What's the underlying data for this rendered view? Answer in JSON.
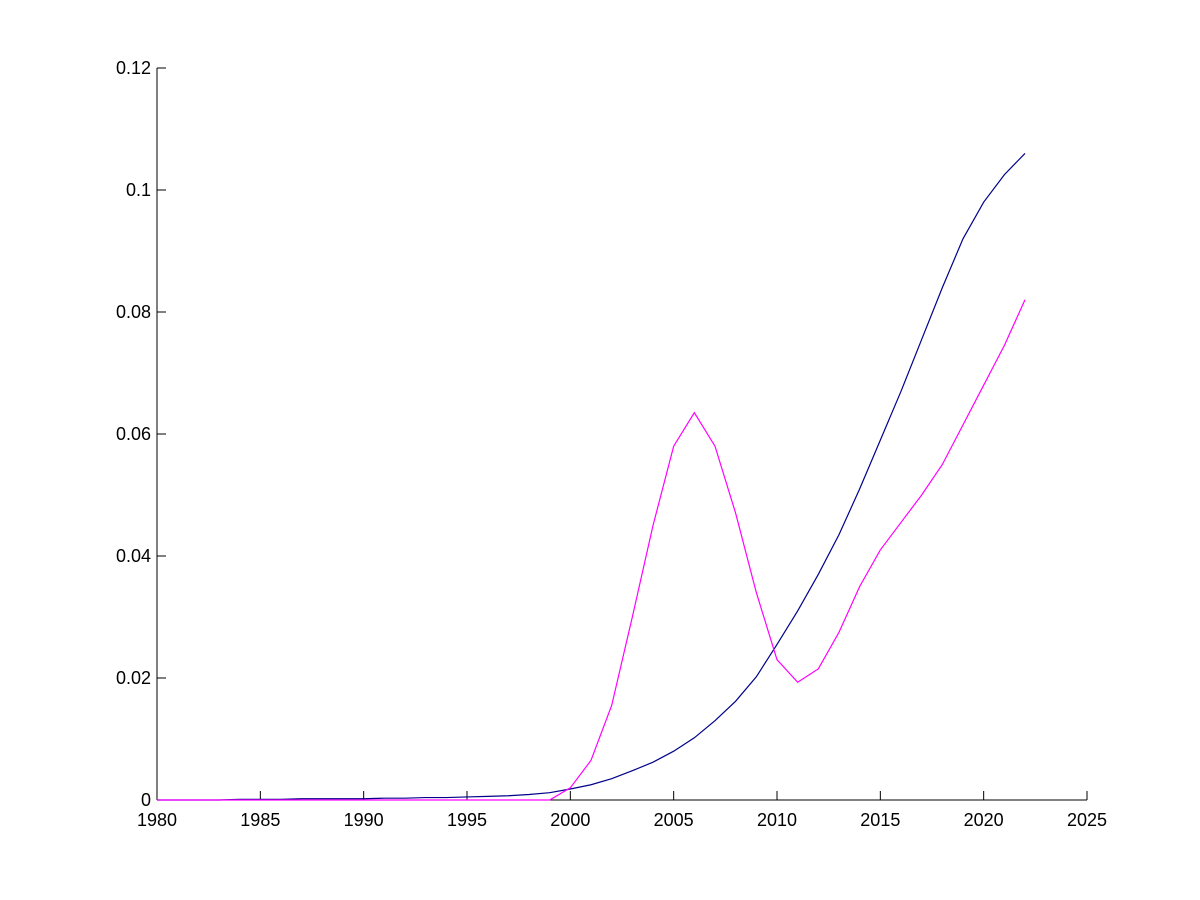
{
  "chart_data": {
    "type": "line",
    "x": [
      1980,
      1981,
      1982,
      1983,
      1984,
      1985,
      1986,
      1987,
      1988,
      1989,
      1990,
      1991,
      1992,
      1993,
      1994,
      1995,
      1996,
      1997,
      1998,
      1999,
      2000,
      2001,
      2002,
      2003,
      2004,
      2005,
      2006,
      2007,
      2008,
      2009,
      2010,
      2011,
      2012,
      2013,
      2014,
      2015,
      2016,
      2017,
      2018,
      2019,
      2020,
      2021,
      2022
    ],
    "series": [
      {
        "color": "#00008b",
        "values": [
          0,
          0,
          0,
          0,
          0.0001,
          0.0001,
          0.0001,
          0.0002,
          0.0002,
          0.0002,
          0.0002,
          0.0003,
          0.0003,
          0.0004,
          0.0004,
          0.0005,
          0.0006,
          0.0007,
          0.0009,
          0.0012,
          0.0018,
          0.0025,
          0.0035,
          0.0048,
          0.0062,
          0.008,
          0.0102,
          0.013,
          0.0162,
          0.0202,
          0.0255,
          0.031,
          0.037,
          0.0435,
          0.051,
          0.059,
          0.067,
          0.0755,
          0.084,
          0.092,
          0.098,
          0.1025,
          0.106
        ]
      },
      {
        "color": "#ff00ff",
        "values": [
          0,
          0,
          0,
          0,
          0,
          0,
          0,
          0,
          0,
          0,
          0,
          0,
          0,
          0,
          0,
          0,
          0,
          0,
          0,
          0,
          0.002,
          0.0065,
          0.0155,
          0.03,
          0.045,
          0.058,
          0.0635,
          0.058,
          0.047,
          0.034,
          0.023,
          0.0193,
          0.0215,
          0.0275,
          0.035,
          0.041,
          0.0455,
          0.05,
          0.055,
          0.0615,
          0.068,
          0.0745,
          0.082
        ]
      }
    ],
    "xlim": [
      1980,
      2025
    ],
    "xticks": [
      1980,
      1985,
      1990,
      1995,
      2000,
      2005,
      2010,
      2015,
      2020,
      2025
    ],
    "ylim": [
      0,
      0.12
    ],
    "yticks": [
      0,
      0.02,
      0.04,
      0.06,
      0.08,
      0.1,
      0.12
    ]
  }
}
